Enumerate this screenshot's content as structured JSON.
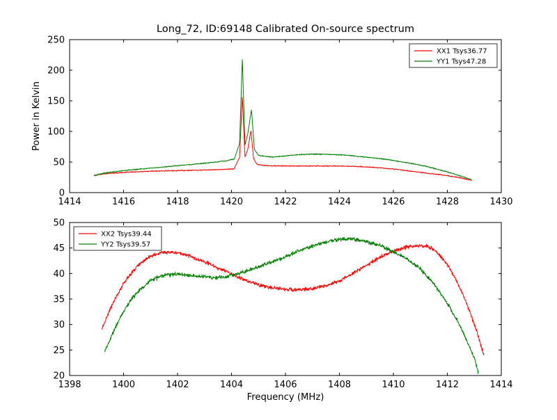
{
  "figure": {
    "background": "#ffffff",
    "axis_color": "#000000"
  },
  "chart_data": [
    {
      "type": "line",
      "title": "Long_72, ID:69148 Calibrated On-source spectrum",
      "xlabel": "",
      "ylabel": "Power in Kelvin",
      "xlim": [
        1414,
        1430
      ],
      "ylim": [
        0,
        250
      ],
      "xticks": [
        1414,
        1416,
        1418,
        1420,
        1422,
        1424,
        1426,
        1428,
        1430
      ],
      "yticks": [
        0,
        50,
        100,
        150,
        200,
        250
      ],
      "grid": false,
      "legend_position": "top-right",
      "noise": 0.6,
      "series": [
        {
          "name": "XX1 Tsys36.77",
          "color": "#ff0000",
          "points": [
            [
              1414.9,
              28
            ],
            [
              1415.3,
              31
            ],
            [
              1416,
              33
            ],
            [
              1417,
              35
            ],
            [
              1418,
              36
            ],
            [
              1419,
              37
            ],
            [
              1419.8,
              38
            ],
            [
              1420.1,
              39
            ],
            [
              1420.3,
              58
            ],
            [
              1420.4,
              158
            ],
            [
              1420.5,
              58
            ],
            [
              1420.6,
              70
            ],
            [
              1420.72,
              102
            ],
            [
              1420.82,
              55
            ],
            [
              1420.95,
              46
            ],
            [
              1421.3,
              44
            ],
            [
              1422,
              43.5
            ],
            [
              1423,
              43.5
            ],
            [
              1424,
              43.5
            ],
            [
              1424.8,
              42.5
            ],
            [
              1425.5,
              40.5
            ],
            [
              1426.2,
              37.5
            ],
            [
              1427,
              33
            ],
            [
              1427.8,
              29
            ],
            [
              1428.4,
              25
            ],
            [
              1428.9,
              20
            ]
          ]
        },
        {
          "name": "YY1 Tsys47.28",
          "color": "#008000",
          "points": [
            [
              1414.9,
              28
            ],
            [
              1415.3,
              32
            ],
            [
              1416,
              36
            ],
            [
              1417,
              40
            ],
            [
              1418,
              44
            ],
            [
              1419,
              48
            ],
            [
              1419.8,
              52
            ],
            [
              1420.1,
              55
            ],
            [
              1420.3,
              80
            ],
            [
              1420.4,
              220
            ],
            [
              1420.5,
              78
            ],
            [
              1420.6,
              95
            ],
            [
              1420.74,
              136
            ],
            [
              1420.85,
              70
            ],
            [
              1421,
              61
            ],
            [
              1421.5,
              58
            ],
            [
              1422,
              60
            ],
            [
              1422.6,
              62.5
            ],
            [
              1423,
              63
            ],
            [
              1423.6,
              62.5
            ],
            [
              1424.3,
              61
            ],
            [
              1425,
              58
            ],
            [
              1425.8,
              54
            ],
            [
              1426.5,
              49
            ],
            [
              1427.2,
              43
            ],
            [
              1428,
              34
            ],
            [
              1428.5,
              27
            ],
            [
              1428.9,
              21
            ]
          ]
        }
      ]
    },
    {
      "type": "line",
      "title": "",
      "xlabel": "Frequency (MHz)",
      "ylabel": "",
      "xlim": [
        1398,
        1414
      ],
      "ylim": [
        20,
        50
      ],
      "xticks": [
        1398,
        1400,
        1402,
        1404,
        1406,
        1408,
        1410,
        1412,
        1414
      ],
      "yticks": [
        20,
        25,
        30,
        35,
        40,
        45,
        50
      ],
      "grid": false,
      "legend_position": "top-left",
      "noise": 0.28,
      "series": [
        {
          "name": "XX2 Tsys39.44",
          "color": "#ff0000",
          "points": [
            [
              1399.2,
              29.2
            ],
            [
              1399.6,
              34.2
            ],
            [
              1400.0,
              38.0
            ],
            [
              1400.5,
              41.5
            ],
            [
              1401.0,
              43.4
            ],
            [
              1401.5,
              44.2
            ],
            [
              1402.0,
              44.1
            ],
            [
              1402.5,
              43.3
            ],
            [
              1403.0,
              42.3
            ],
            [
              1403.5,
              41.1
            ],
            [
              1404.0,
              39.9
            ],
            [
              1404.5,
              38.7
            ],
            [
              1405.0,
              37.8
            ],
            [
              1405.5,
              37.2
            ],
            [
              1406.0,
              36.9
            ],
            [
              1406.5,
              36.8
            ],
            [
              1407.0,
              37.0
            ],
            [
              1407.5,
              37.6
            ],
            [
              1408.0,
              38.6
            ],
            [
              1408.5,
              40.0
            ],
            [
              1409.0,
              41.6
            ],
            [
              1409.5,
              43.2
            ],
            [
              1410.0,
              44.4
            ],
            [
              1410.5,
              45.2
            ],
            [
              1411.0,
              45.5
            ],
            [
              1411.3,
              45.3
            ],
            [
              1411.6,
              44.3
            ],
            [
              1412.0,
              41.8
            ],
            [
              1412.4,
              38.0
            ],
            [
              1412.8,
              33.0
            ],
            [
              1413.1,
              28.5
            ],
            [
              1413.35,
              24.0
            ]
          ]
        },
        {
          "name": "YY2 Tsys39.57",
          "color": "#008000",
          "points": [
            [
              1399.3,
              24.6
            ],
            [
              1399.7,
              29.5
            ],
            [
              1400.1,
              33.5
            ],
            [
              1400.5,
              36.3
            ],
            [
              1401.0,
              38.6
            ],
            [
              1401.5,
              39.7
            ],
            [
              1402.0,
              39.9
            ],
            [
              1402.5,
              39.6
            ],
            [
              1403.0,
              39.3
            ],
            [
              1403.5,
              39.2
            ],
            [
              1404.0,
              39.6
            ],
            [
              1404.5,
              40.4
            ],
            [
              1405.0,
              41.3
            ],
            [
              1405.5,
              42.3
            ],
            [
              1406.0,
              43.3
            ],
            [
              1406.5,
              44.4
            ],
            [
              1407.0,
              45.4
            ],
            [
              1407.5,
              46.2
            ],
            [
              1408.0,
              46.7
            ],
            [
              1408.4,
              46.8
            ],
            [
              1408.8,
              46.5
            ],
            [
              1409.2,
              46.0
            ],
            [
              1409.6,
              45.3
            ],
            [
              1410.0,
              44.3
            ],
            [
              1410.5,
              42.9
            ],
            [
              1411.0,
              40.9
            ],
            [
              1411.5,
              38.0
            ],
            [
              1412.0,
              34.2
            ],
            [
              1412.5,
              29.5
            ],
            [
              1413.0,
              23.5
            ],
            [
              1413.15,
              20.5
            ]
          ]
        }
      ]
    }
  ]
}
